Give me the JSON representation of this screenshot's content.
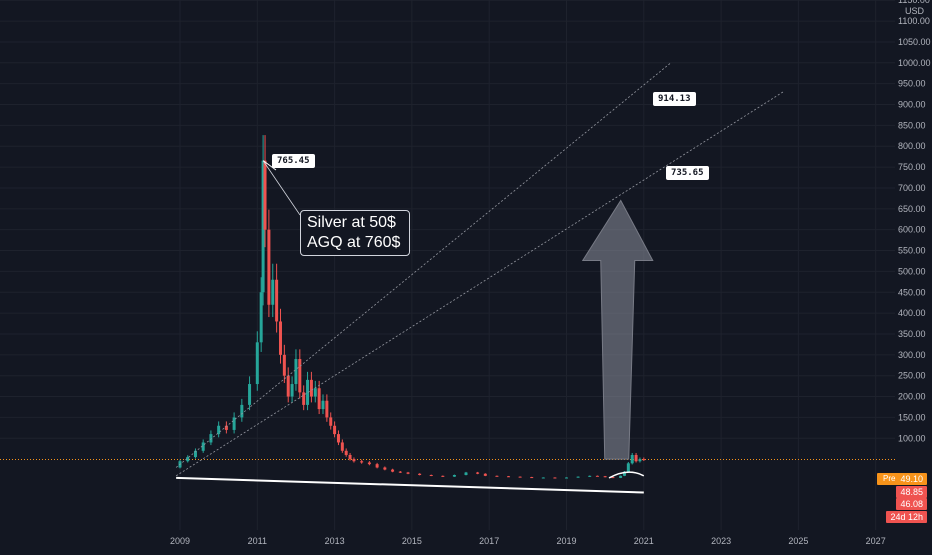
{
  "currency_label": "USD",
  "colors": {
    "up": "#26a69a",
    "down": "#ef5350",
    "bg": "#131722",
    "grid": "#1e222d",
    "text": "#b2b5be",
    "accent": "#f7931a"
  },
  "chart_data": {
    "type": "candlestick",
    "title": "",
    "xlabel": "",
    "ylabel": "",
    "scale": "linear",
    "ylim": [
      0,
      1200
    ],
    "xlim": [
      2008.5,
      2027.5
    ],
    "x_ticks": [
      "2009",
      "2011",
      "2013",
      "2015",
      "2017",
      "2019",
      "2021",
      "2023",
      "2025",
      "2027"
    ],
    "y_ticks": [
      "1150.00",
      "1100.00",
      "1050.00",
      "1000.00",
      "950.00",
      "900.00",
      "850.00",
      "800.00",
      "750.00",
      "700.00",
      "650.00",
      "600.00",
      "550.00",
      "500.00",
      "450.00",
      "400.00",
      "350.00",
      "300.00",
      "250.00",
      "200.00",
      "150.00",
      "100.00"
    ],
    "price_series": {
      "x": [
        2008.9,
        2009.0,
        2009.2,
        2009.4,
        2009.6,
        2009.8,
        2010.0,
        2010.2,
        2010.4,
        2010.6,
        2010.8,
        2011.0,
        2011.1,
        2011.15,
        2011.2,
        2011.3,
        2011.4,
        2011.5,
        2011.6,
        2011.7,
        2011.8,
        2011.9,
        2012.0,
        2012.1,
        2012.2,
        2012.3,
        2012.4,
        2012.5,
        2012.6,
        2012.7,
        2012.8,
        2012.9,
        2013.0,
        2013.1,
        2013.2,
        2013.3,
        2013.4,
        2013.5,
        2013.7,
        2013.9,
        2014.1,
        2014.3,
        2014.5,
        2014.7,
        2014.9,
        2015.2,
        2015.5,
        2015.8,
        2016.1,
        2016.4,
        2016.7,
        2016.9,
        2017.2,
        2017.5,
        2017.8,
        2018.1,
        2018.4,
        2018.7,
        2019.0,
        2019.3,
        2019.6,
        2019.8,
        2020.0,
        2020.2,
        2020.4,
        2020.5,
        2020.6,
        2020.7,
        2020.8,
        2020.9,
        2021.0
      ],
      "y": [
        30,
        45,
        55,
        70,
        90,
        110,
        130,
        120,
        150,
        180,
        230,
        330,
        450,
        765.45,
        600,
        420,
        480,
        380,
        300,
        250,
        200,
        230,
        290,
        210,
        180,
        240,
        200,
        220,
        170,
        190,
        150,
        130,
        110,
        90,
        70,
        60,
        50,
        45,
        42,
        38,
        30,
        25,
        20,
        18,
        15,
        12,
        10,
        8,
        12,
        18,
        15,
        10,
        9,
        8,
        7,
        6,
        6,
        5,
        6,
        8,
        10,
        9,
        7,
        5,
        10,
        20,
        40,
        60,
        45,
        50,
        49.1
      ]
    },
    "trendlines": [
      {
        "name": "upper",
        "from": [
          2008.9,
          30
        ],
        "to": [
          2021.7,
          1000
        ],
        "label": "914.13"
      },
      {
        "name": "lower",
        "from": [
          2008.9,
          10
        ],
        "to": [
          2024.6,
          930
        ],
        "label": "735.65"
      },
      {
        "name": "support",
        "from": [
          2008.9,
          5
        ],
        "to": [
          2021.0,
          -30
        ]
      }
    ],
    "annotations": [
      {
        "text": "765.45",
        "x": 2011.15,
        "y": 765.45
      },
      {
        "text": "914.13",
        "x": 2020.0,
        "y": 914.13
      },
      {
        "text": "735.65",
        "x": 2020.2,
        "y": 735.65
      }
    ],
    "callout_lines": [
      "Silver at 50$",
      "AGQ at 760$"
    ],
    "forecast_arrow": {
      "from": [
        2020.3,
        50
      ],
      "to": [
        2020.3,
        670
      ]
    },
    "current_price": "49.10",
    "price_levels": [
      {
        "text": "49.10",
        "tag": "Pre"
      },
      {
        "text": "48.85"
      },
      {
        "text": "46.08"
      },
      {
        "text": "24d 12h"
      }
    ]
  }
}
